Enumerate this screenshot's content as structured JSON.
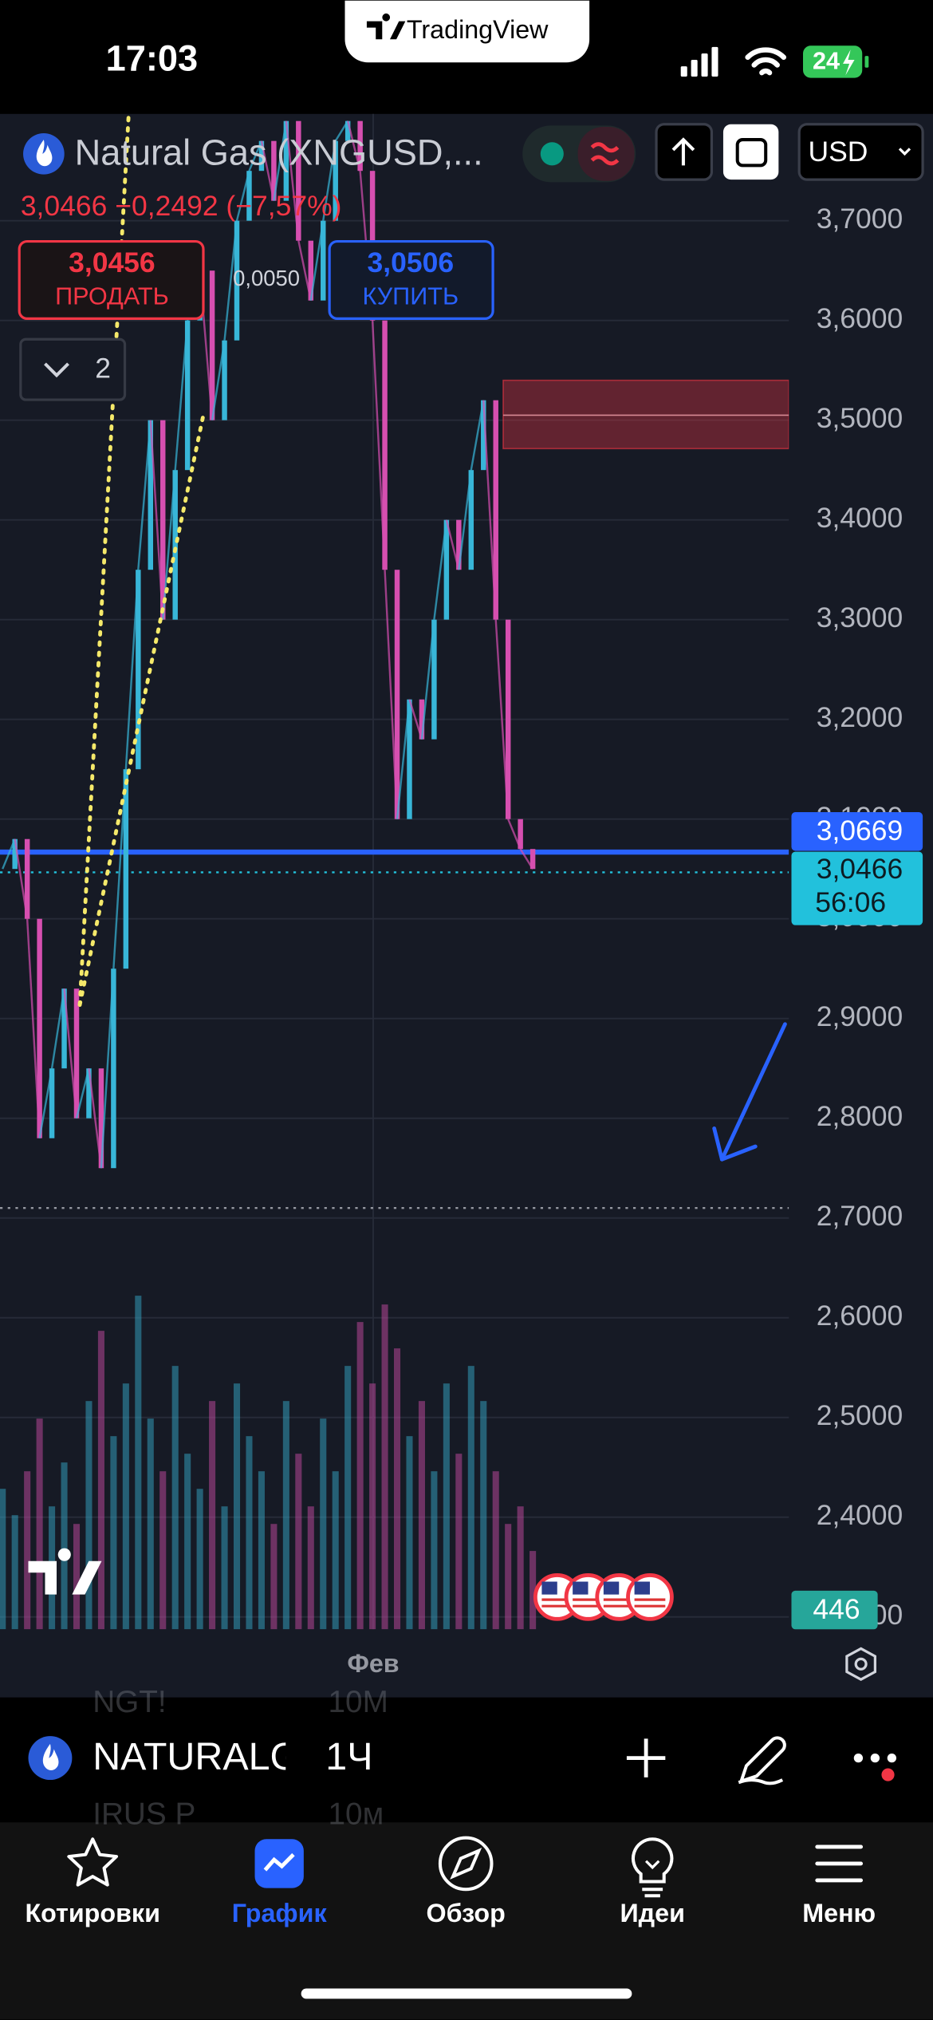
{
  "status_bar": {
    "time": "17:03",
    "app_banner": "TradingView",
    "battery": "24"
  },
  "header": {
    "symbol": "Natural Gas (XNGUSD,...",
    "quote": "3,0466 −0,2492 (−7,57%)",
    "currency": "USD"
  },
  "trade": {
    "sell_price": "3,0456",
    "sell_label": "ПРОДАТЬ",
    "spread": "0,0050",
    "buy_price": "3,0506",
    "buy_label": "КУПИТЬ",
    "indicator_count": "2"
  },
  "chart": {
    "ylim": [
      2.3,
      3.8
    ],
    "yticks": [
      {
        "value": 3.7,
        "label": "3,7000"
      },
      {
        "value": 3.6,
        "label": "3,6000"
      },
      {
        "value": 3.5,
        "label": "3,5000"
      },
      {
        "value": 3.4,
        "label": "3,4000"
      },
      {
        "value": 3.3,
        "label": "3,3000"
      },
      {
        "value": 3.2,
        "label": "3,2000"
      },
      {
        "value": 3.1,
        "label": "3,1000"
      },
      {
        "value": 3.0,
        "label": "3,0000"
      },
      {
        "value": 2.9,
        "label": "2,9000"
      },
      {
        "value": 2.8,
        "label": "2,8000"
      },
      {
        "value": 2.7,
        "label": "2,7000"
      },
      {
        "value": 2.6,
        "label": "2,6000"
      },
      {
        "value": 2.5,
        "label": "2,5000"
      },
      {
        "value": 2.4,
        "label": "2,4000"
      },
      {
        "value": 2.3,
        "label": "2,3000"
      }
    ],
    "grid": true,
    "prices": {
      "up_color": "#38b6d8",
      "down_color": "#d64fb0",
      "values": [
        3.05,
        3.08,
        3.0,
        2.78,
        2.85,
        2.93,
        2.8,
        2.85,
        2.75,
        2.95,
        3.15,
        3.35,
        3.5,
        3.3,
        3.45,
        3.6,
        3.65,
        3.5,
        3.58,
        3.7,
        3.75,
        3.78,
        3.72,
        3.8,
        3.68,
        3.62,
        3.7,
        3.78,
        3.8,
        3.75,
        3.6,
        3.35,
        3.1,
        3.22,
        3.18,
        3.3,
        3.4,
        3.35,
        3.45,
        3.52,
        3.3,
        3.1,
        3.07,
        3.05
      ]
    },
    "volume": {
      "ylim": [
        0,
        2200
      ],
      "values": [
        800,
        650,
        900,
        1200,
        700,
        950,
        600,
        1300,
        1700,
        1100,
        1400,
        1900,
        1200,
        900,
        1500,
        1000,
        800,
        1300,
        700,
        1400,
        1100,
        900,
        600,
        1300,
        1000,
        700,
        1200,
        900,
        1500,
        1750,
        1400,
        1850,
        1600,
        1100,
        1300,
        900,
        1400,
        1000,
        1500,
        1300,
        900,
        600,
        700,
        446
      ]
    },
    "alert_line": {
      "value": 3.0669,
      "label": "3,0669",
      "color": "#2962ff"
    },
    "last_price": {
      "value": 3.0466,
      "label": "3,0466",
      "countdown": "56:06",
      "color": "#22c1dc"
    },
    "low_line": {
      "value": 2.71
    },
    "zone": {
      "from": 3.4715,
      "to": 3.54,
      "mid": 3.505,
      "color": "#f23645"
    },
    "x_label": "Фев"
  },
  "bottom_bar": {
    "symbol": "NATURALG",
    "interval": "1Ч",
    "ghost": [
      [
        "NGT!",
        "10M"
      ],
      [
        "IRUS P",
        "10м"
      ]
    ]
  },
  "tabs": [
    {
      "label": "Котировки",
      "active": false
    },
    {
      "label": "График",
      "active": true
    },
    {
      "label": "Обзор",
      "active": false
    },
    {
      "label": "Идеи",
      "active": false
    },
    {
      "label": "Меню",
      "active": false
    }
  ]
}
